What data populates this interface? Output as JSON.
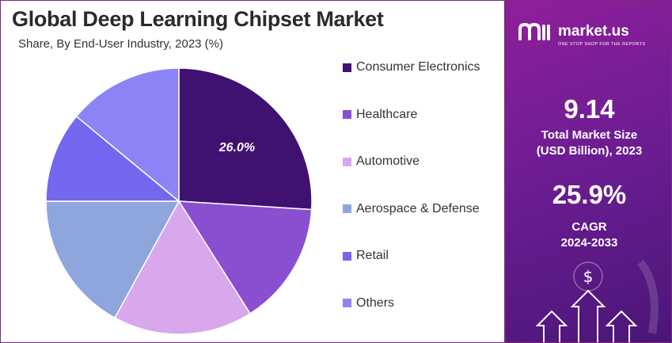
{
  "header": {
    "title": "Global Deep Learning Chipset Market",
    "subtitle": "Share, By End-User Industry, 2023 (%)"
  },
  "chart_data": {
    "type": "pie",
    "title": "Global Deep Learning Chipset Market",
    "subtitle": "Share, By End-User Industry, 2023 (%)",
    "legend_position": "right",
    "slices": [
      {
        "label": "Consumer Electronics",
        "value": 26.0,
        "color": "#3f1171",
        "label_text": "26.0%"
      },
      {
        "label": "Healthcare",
        "value": 15.0,
        "color": "#8a4fd0",
        "label_text": ""
      },
      {
        "label": "Automotive",
        "value": 17.0,
        "color": "#d8a7ec",
        "label_text": ""
      },
      {
        "label": "Aerospace & Defense",
        "value": 17.0,
        "color": "#8fa6dd",
        "label_text": ""
      },
      {
        "label": "Retail",
        "value": 11.0,
        "color": "#7466ee",
        "label_text": ""
      },
      {
        "label": "Others",
        "value": 14.0,
        "color": "#8c84f6",
        "label_text": ""
      }
    ]
  },
  "sidebar": {
    "brand_name": "market.us",
    "brand_tagline": "ONE STOP SHOP FOR THE REPORTS",
    "market_size_value": "9.14",
    "market_size_label_line1": "Total Market Size",
    "market_size_label_line2": "(USD Billion), 2023",
    "cagr_value": "25.9%",
    "cagr_label_line1": "CAGR",
    "cagr_label_line2": "2024-2033",
    "dollar_symbol": "$",
    "accent_color": "#7a1f96"
  }
}
